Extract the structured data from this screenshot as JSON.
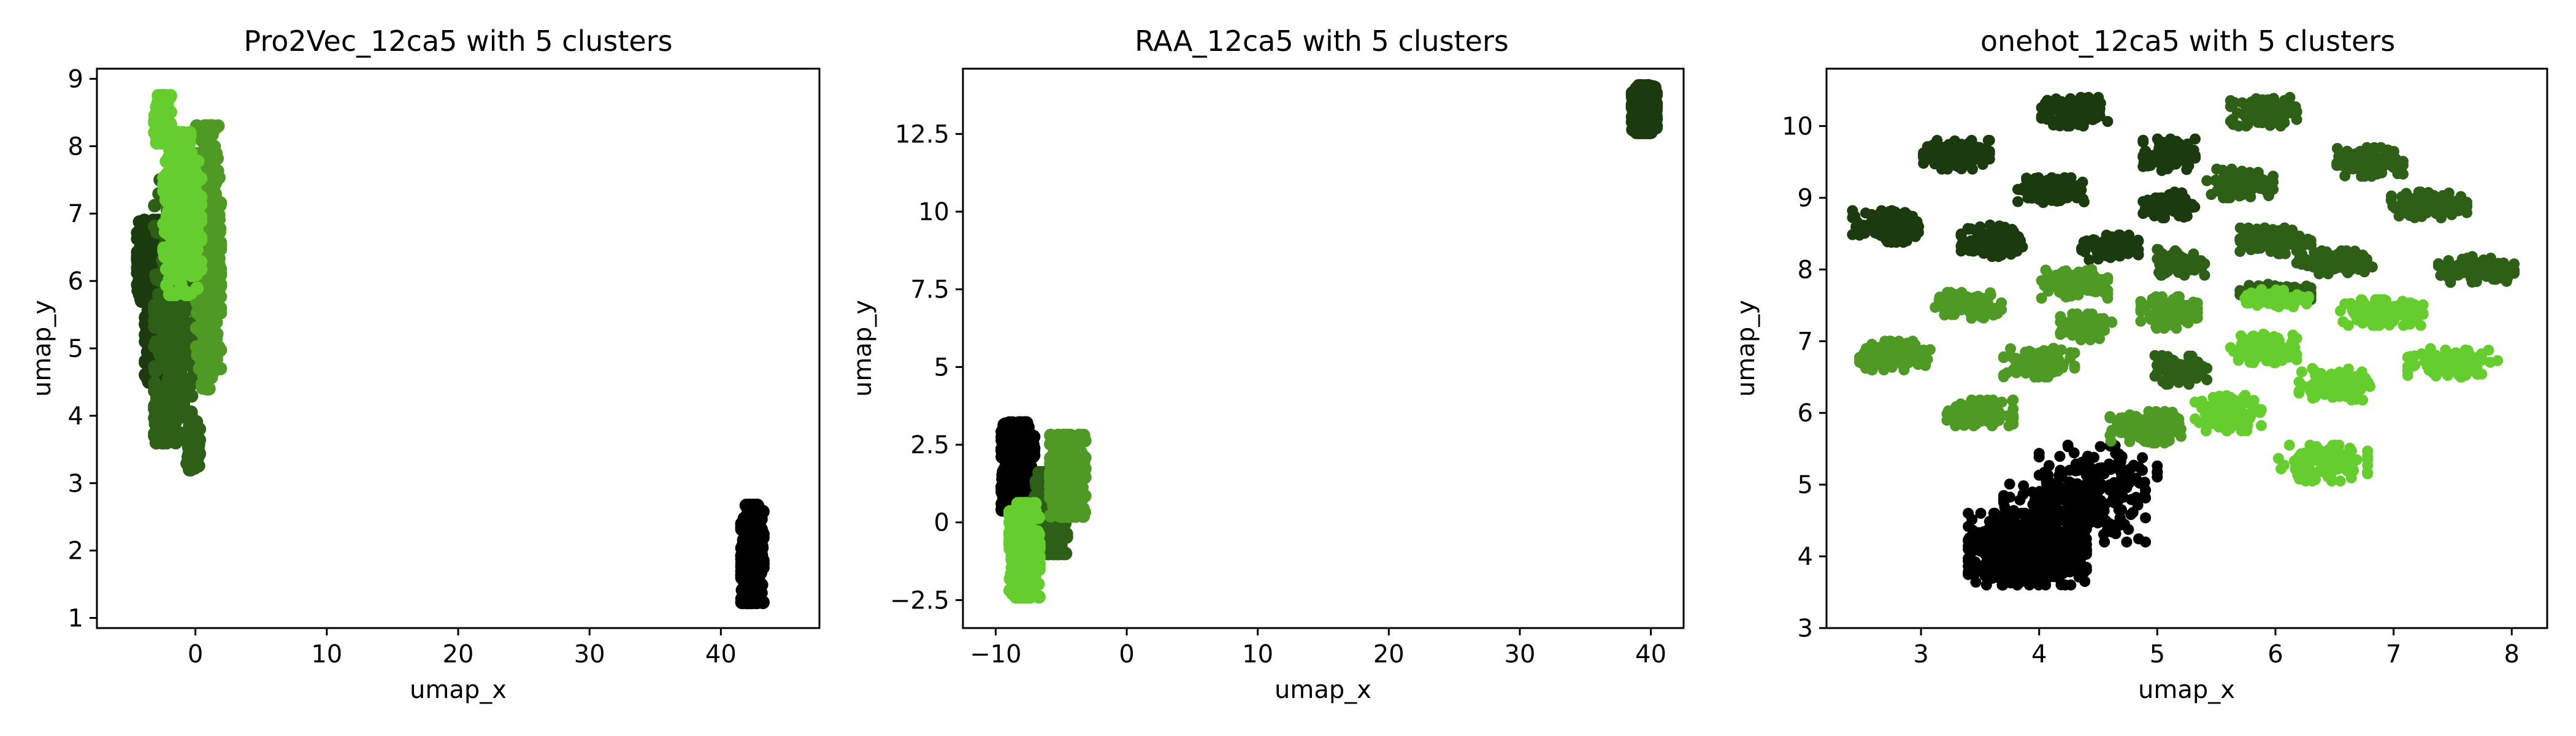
{
  "chart_data": [
    {
      "type": "scatter",
      "title": "Pro2Vec_12ca5 with 5 clusters",
      "xlabel": "umap_x",
      "ylabel": "umap_y",
      "xlim": [
        -7.5,
        47.5
      ],
      "ylim": [
        0.85,
        9.15
      ],
      "xticks": [
        0,
        10,
        20,
        30,
        40
      ],
      "yticks": [
        1,
        2,
        3,
        4,
        5,
        6,
        7,
        8,
        9
      ],
      "grid": false,
      "legend": "none",
      "series": [
        {
          "color": "#000000",
          "clusters": [
            {
              "cx": 42.4,
              "cy": 1.95,
              "rx": 0.8,
              "ry": 0.72,
              "n": 500
            }
          ]
        },
        {
          "color": "#1b3a0e",
          "clusters": [
            {
              "cx": -3.5,
              "cy": 6.3,
              "rx": 0.9,
              "ry": 0.6,
              "n": 350
            },
            {
              "cx": -3.0,
              "cy": 5.3,
              "rx": 0.8,
              "ry": 0.8,
              "n": 350
            }
          ]
        },
        {
          "color": "#2e5f16",
          "clusters": [
            {
              "cx": -1.5,
              "cy": 5.6,
              "rx": 1.6,
              "ry": 1.9,
              "n": 400
            },
            {
              "cx": -2.3,
              "cy": 4.0,
              "rx": 0.8,
              "ry": 0.4,
              "n": 200
            },
            {
              "cx": -0.2,
              "cy": 3.6,
              "rx": 0.5,
              "ry": 0.4,
              "n": 120
            }
          ]
        },
        {
          "color": "#4e9a25",
          "clusters": [
            {
              "cx": 1.0,
              "cy": 6.5,
              "rx": 0.9,
              "ry": 1.8,
              "n": 500
            },
            {
              "cx": 1.0,
              "cy": 4.9,
              "rx": 0.6,
              "ry": 0.5,
              "n": 120
            }
          ]
        },
        {
          "color": "#66cd2e",
          "clusters": [
            {
              "cx": -1.0,
              "cy": 7.0,
              "rx": 1.4,
              "ry": 1.2,
              "n": 400
            },
            {
              "cx": -2.5,
              "cy": 8.4,
              "rx": 0.6,
              "ry": 0.35,
              "n": 150
            }
          ]
        }
      ]
    },
    {
      "type": "scatter",
      "title": "RAA_12ca5 with 5 clusters",
      "xlabel": "umap_x",
      "ylabel": "umap_y",
      "xlim": [
        -12.5,
        42.5
      ],
      "ylim": [
        -3.4,
        14.6
      ],
      "xticks": [
        -10,
        0,
        10,
        20,
        30,
        40
      ],
      "yticks": [
        -2.5,
        0.0,
        2.5,
        5.0,
        7.5,
        10.0,
        12.5
      ],
      "grid": false,
      "legend": "none",
      "series": [
        {
          "color": "#000000",
          "clusters": [
            {
              "cx": -8.3,
              "cy": 1.8,
              "rx": 1.2,
              "ry": 1.4,
              "n": 400
            }
          ]
        },
        {
          "color": "#1b3a0e",
          "clusters": [
            {
              "cx": 39.5,
              "cy": 13.3,
              "rx": 0.9,
              "ry": 0.75,
              "n": 450
            }
          ]
        },
        {
          "color": "#2e5f16",
          "clusters": [
            {
              "cx": -5.8,
              "cy": 0.3,
              "rx": 1.2,
              "ry": 1.3,
              "n": 400
            }
          ]
        },
        {
          "color": "#4e9a25",
          "clusters": [
            {
              "cx": -4.5,
              "cy": 1.5,
              "rx": 1.3,
              "ry": 1.3,
              "n": 400
            }
          ]
        },
        {
          "color": "#66cd2e",
          "clusters": [
            {
              "cx": -7.8,
              "cy": -0.9,
              "rx": 1.1,
              "ry": 1.5,
              "n": 450
            }
          ]
        }
      ]
    },
    {
      "type": "scatter",
      "title": "onehot_12ca5 with 5 clusters",
      "xlabel": "umap_x",
      "ylabel": "umap_y",
      "xlim": [
        2.2,
        8.3
      ],
      "ylim": [
        3.0,
        10.8
      ],
      "xticks": [
        3,
        4,
        5,
        6,
        7,
        8
      ],
      "yticks": [
        3,
        4,
        5,
        6,
        7,
        8,
        9,
        10
      ],
      "grid": false,
      "legend": "none",
      "series": [
        {
          "color": "#000000",
          "clusters": [
            {
              "cx": 3.9,
              "cy": 4.1,
              "rx": 0.5,
              "ry": 0.5,
              "n": 550
            },
            {
              "cx": 4.3,
              "cy": 4.7,
              "rx": 0.6,
              "ry": 0.5,
              "n": 250
            },
            {
              "cx": 4.5,
              "cy": 5.2,
              "rx": 0.5,
              "ry": 0.35,
              "n": 80
            }
          ]
        },
        {
          "color": "#1b3a0e",
          "clusters": [
            {
              "cx": 2.7,
              "cy": 8.6,
              "rx": 0.28,
              "ry": 0.22,
              "n": 120
            },
            {
              "cx": 3.3,
              "cy": 9.6,
              "rx": 0.28,
              "ry": 0.2,
              "n": 120
            },
            {
              "cx": 3.6,
              "cy": 8.4,
              "rx": 0.26,
              "ry": 0.22,
              "n": 120
            },
            {
              "cx": 4.1,
              "cy": 9.1,
              "rx": 0.28,
              "ry": 0.18,
              "n": 120
            },
            {
              "cx": 4.3,
              "cy": 10.2,
              "rx": 0.28,
              "ry": 0.2,
              "n": 120
            },
            {
              "cx": 4.6,
              "cy": 8.3,
              "rx": 0.24,
              "ry": 0.18,
              "n": 100
            },
            {
              "cx": 5.1,
              "cy": 9.6,
              "rx": 0.22,
              "ry": 0.22,
              "n": 100
            },
            {
              "cx": 5.1,
              "cy": 8.9,
              "rx": 0.22,
              "ry": 0.18,
              "n": 100
            }
          ]
        },
        {
          "color": "#2e5f16",
          "clusters": [
            {
              "cx": 5.2,
              "cy": 8.1,
              "rx": 0.2,
              "ry": 0.18,
              "n": 80
            },
            {
              "cx": 5.7,
              "cy": 9.2,
              "rx": 0.28,
              "ry": 0.2,
              "n": 110
            },
            {
              "cx": 5.9,
              "cy": 10.2,
              "rx": 0.28,
              "ry": 0.2,
              "n": 110
            },
            {
              "cx": 6.0,
              "cy": 8.4,
              "rx": 0.3,
              "ry": 0.18,
              "n": 110
            },
            {
              "cx": 6.0,
              "cy": 7.7,
              "rx": 0.3,
              "ry": 0.12,
              "n": 80
            },
            {
              "cx": 6.5,
              "cy": 8.1,
              "rx": 0.32,
              "ry": 0.16,
              "n": 110
            },
            {
              "cx": 6.8,
              "cy": 9.5,
              "rx": 0.28,
              "ry": 0.2,
              "n": 110
            },
            {
              "cx": 7.3,
              "cy": 8.9,
              "rx": 0.32,
              "ry": 0.18,
              "n": 110
            },
            {
              "cx": 7.7,
              "cy": 8.0,
              "rx": 0.32,
              "ry": 0.18,
              "n": 110
            },
            {
              "cx": 5.2,
              "cy": 6.6,
              "rx": 0.22,
              "ry": 0.2,
              "n": 90
            }
          ]
        },
        {
          "color": "#4e9a25",
          "clusters": [
            {
              "cx": 2.8,
              "cy": 6.8,
              "rx": 0.32,
              "ry": 0.2,
              "n": 120
            },
            {
              "cx": 3.4,
              "cy": 7.5,
              "rx": 0.28,
              "ry": 0.18,
              "n": 110
            },
            {
              "cx": 3.5,
              "cy": 6.0,
              "rx": 0.28,
              "ry": 0.18,
              "n": 110
            },
            {
              "cx": 4.0,
              "cy": 6.7,
              "rx": 0.3,
              "ry": 0.2,
              "n": 110
            },
            {
              "cx": 4.3,
              "cy": 7.8,
              "rx": 0.28,
              "ry": 0.2,
              "n": 110
            },
            {
              "cx": 4.4,
              "cy": 7.2,
              "rx": 0.22,
              "ry": 0.18,
              "n": 90
            },
            {
              "cx": 4.9,
              "cy": 5.8,
              "rx": 0.3,
              "ry": 0.22,
              "n": 120
            },
            {
              "cx": 5.1,
              "cy": 7.4,
              "rx": 0.24,
              "ry": 0.22,
              "n": 90
            }
          ]
        },
        {
          "color": "#66cd2e",
          "clusters": [
            {
              "cx": 5.6,
              "cy": 6.0,
              "rx": 0.28,
              "ry": 0.25,
              "n": 110
            },
            {
              "cx": 5.9,
              "cy": 6.9,
              "rx": 0.28,
              "ry": 0.2,
              "n": 110
            },
            {
              "cx": 6.0,
              "cy": 7.6,
              "rx": 0.28,
              "ry": 0.12,
              "n": 80
            },
            {
              "cx": 6.5,
              "cy": 6.4,
              "rx": 0.3,
              "ry": 0.22,
              "n": 110
            },
            {
              "cx": 6.4,
              "cy": 5.3,
              "rx": 0.38,
              "ry": 0.25,
              "n": 120
            },
            {
              "cx": 6.9,
              "cy": 7.4,
              "rx": 0.35,
              "ry": 0.18,
              "n": 110
            },
            {
              "cx": 7.5,
              "cy": 6.7,
              "rx": 0.38,
              "ry": 0.2,
              "n": 120
            }
          ]
        }
      ]
    }
  ]
}
